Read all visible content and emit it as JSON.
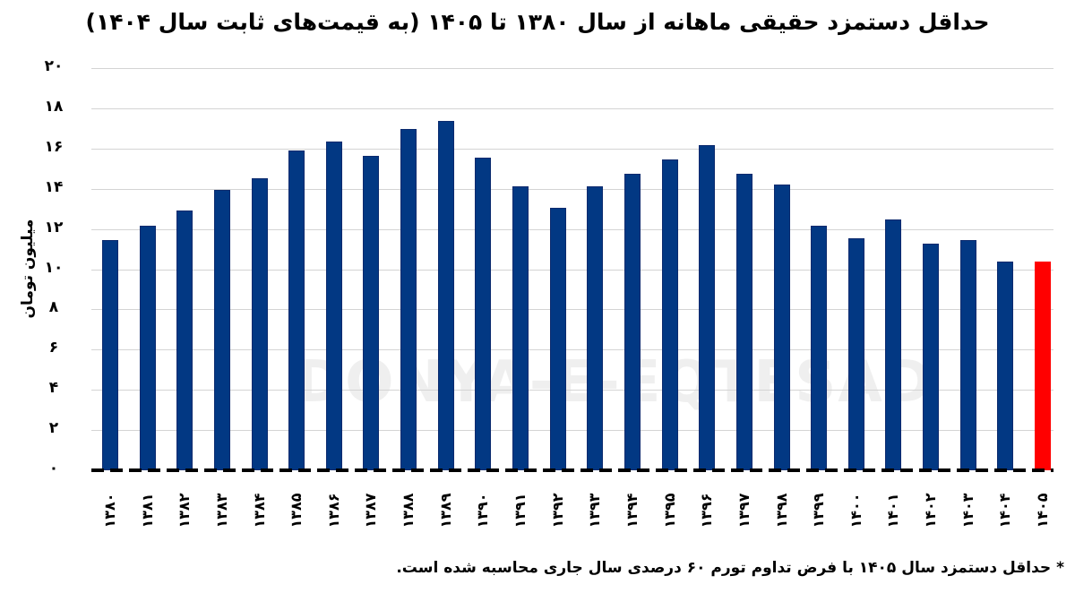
{
  "title": "حداقل دستمزد حقیقی ماهانه از سال ۱۳۸۰ تا ۱۴۰۵ (به قیمت‌های ثابت سال ۱۴۰۴)",
  "footnote": "* حداقل دستمزد سال ۱۴۰۵ با فرض تداوم تورم ۶۰ درصدی سال جاری محاسبه شده است.",
  "watermark": "DONYA-E-EQTESAD",
  "colors": {
    "bar": "#023883",
    "highlight": "#ff0000",
    "grid": "#d4d4d4",
    "axis": "#000000"
  },
  "chart_data": {
    "type": "bar",
    "title": "حداقل دستمزد حقیقی ماهانه از سال ۱۳۸۰ تا ۱۴۰۵ (به قیمت‌های ثابت سال ۱۴۰۴)",
    "xlabel": "",
    "ylabel": "میلیون تومان",
    "ylim": [
      0,
      20
    ],
    "yticks": [
      "۰",
      "۲",
      "۴",
      "۶",
      "۸",
      "۱۰",
      "۱۲",
      "۱۴",
      "۱۶",
      "۱۸",
      "۲۰"
    ],
    "grid": true,
    "legend": null,
    "categories": [
      "۱۳۸۰",
      "۱۳۸۱",
      "۱۳۸۲",
      "۱۳۸۳",
      "۱۳۸۴",
      "۱۳۸۵",
      "۱۳۸۶",
      "۱۳۸۷",
      "۱۳۸۸",
      "۱۳۸۹",
      "۱۳۹۰",
      "۱۳۹۱",
      "۱۳۹۲",
      "۱۳۹۳",
      "۱۳۹۴",
      "۱۳۹۵",
      "۱۳۹۶",
      "۱۳۹۷",
      "۱۳۹۸",
      "۱۳۹۹",
      "۱۴۰۰",
      "۱۴۰۱",
      "۱۴۰۲",
      "۱۴۰۳",
      "۱۴۰۴",
      "۱۴۰۵"
    ],
    "values": [
      11.45,
      12.15,
      12.9,
      13.95,
      14.5,
      15.9,
      16.35,
      15.65,
      16.95,
      17.35,
      15.55,
      14.1,
      13.05,
      14.1,
      14.75,
      15.45,
      16.15,
      14.75,
      14.2,
      12.15,
      11.55,
      12.45,
      11.25,
      11.45,
      10.4,
      10.4
    ],
    "highlighted_index": 25,
    "annotations": [
      "* حداقل دستمزد سال ۱۴۰۵ با فرض تداوم تورم ۶۰ درصدی سال جاری محاسبه شده است."
    ]
  }
}
